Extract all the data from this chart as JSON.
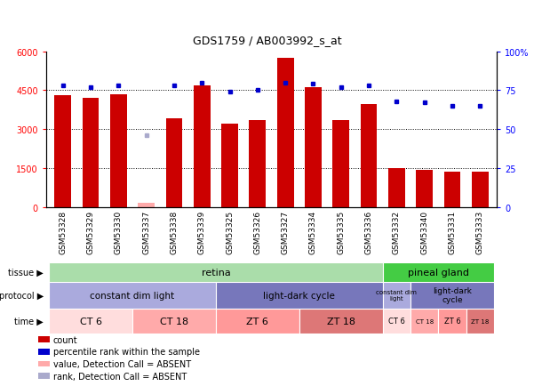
{
  "title": "GDS1759 / AB003992_s_at",
  "samples": [
    "GSM53328",
    "GSM53329",
    "GSM53330",
    "GSM53337",
    "GSM53338",
    "GSM53339",
    "GSM53325",
    "GSM53326",
    "GSM53327",
    "GSM53334",
    "GSM53335",
    "GSM53336",
    "GSM53332",
    "GSM53340",
    "GSM53331",
    "GSM53333"
  ],
  "counts": [
    4300,
    4200,
    4350,
    170,
    3400,
    4700,
    3200,
    3350,
    5750,
    4600,
    3350,
    3950,
    1480,
    1430,
    1350,
    1350
  ],
  "absent_count_flag": [
    false,
    false,
    false,
    true,
    false,
    false,
    false,
    false,
    false,
    false,
    false,
    false,
    false,
    false,
    false,
    false
  ],
  "percentile_ranks": [
    78,
    77,
    78,
    null,
    78,
    80,
    74,
    75,
    80,
    79,
    77,
    78,
    68,
    67,
    65,
    65
  ],
  "absent_rank_val": [
    null,
    null,
    null,
    46,
    null,
    null,
    null,
    null,
    null,
    null,
    null,
    null,
    null,
    null,
    null,
    null
  ],
  "bar_color": "#cc0000",
  "absent_bar_color": "#ffaaaa",
  "dot_color": "#0000cc",
  "absent_rank_color": "#aaaacc",
  "legend_items": [
    {
      "color": "#cc0000",
      "label": "count"
    },
    {
      "color": "#0000cc",
      "label": "percentile rank within the sample"
    },
    {
      "color": "#ffaaaa",
      "label": "value, Detection Call = ABSENT"
    },
    {
      "color": "#aaaacc",
      "label": "rank, Detection Call = ABSENT"
    }
  ]
}
